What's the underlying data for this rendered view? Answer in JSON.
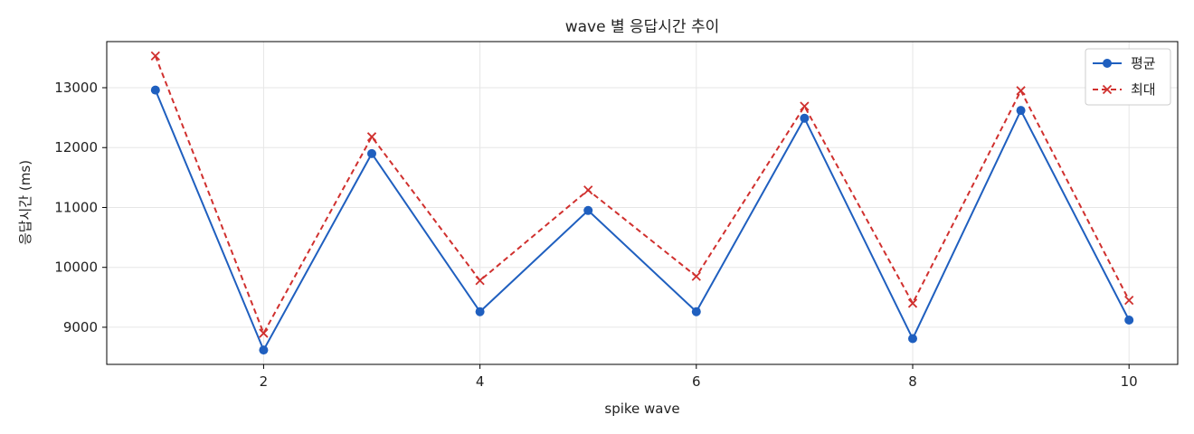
{
  "chart_data": {
    "type": "line",
    "title": "wave 별 응답시간 추이",
    "xlabel": "spike wave",
    "ylabel": "응답시간 (ms)",
    "x": [
      1,
      2,
      3,
      4,
      5,
      6,
      7,
      8,
      9,
      10
    ],
    "xlim": [
      0.55,
      10.45
    ],
    "ylim": [
      8380,
      13770
    ],
    "xticks": [
      2,
      4,
      6,
      8,
      10
    ],
    "yticks": [
      9000,
      10000,
      11000,
      12000,
      13000
    ],
    "grid": true,
    "legend_position": "top-right",
    "series": [
      {
        "name": "평균",
        "color": "#1f5fbf",
        "line_style": "solid",
        "marker": "circle",
        "values": [
          12960,
          8620,
          11900,
          9260,
          10950,
          9260,
          12490,
          8810,
          12620,
          9120
        ]
      },
      {
        "name": "최대",
        "color": "#d0302e",
        "line_style": "dashed",
        "marker": "x",
        "values": [
          13530,
          8900,
          12180,
          9780,
          11290,
          9850,
          12690,
          9400,
          12950,
          9450
        ]
      }
    ]
  }
}
